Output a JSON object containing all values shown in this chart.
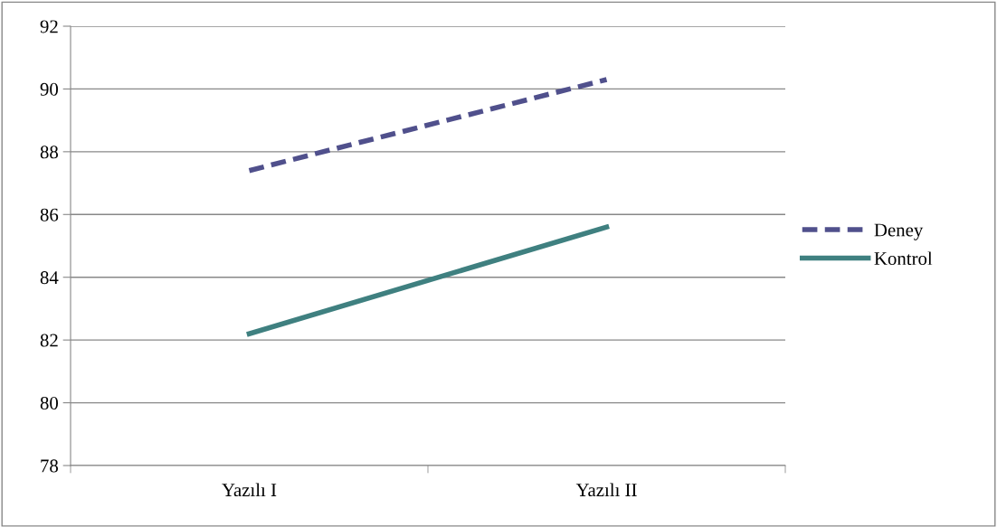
{
  "chart_data": {
    "type": "line",
    "categories": [
      "Yazılı I",
      "Yazılı II"
    ],
    "series": [
      {
        "name": "Deney",
        "color": "#50508c",
        "values": [
          87.4,
          90.3
        ],
        "line_style": "dashed"
      },
      {
        "name": "Kontrol",
        "color": "#3f8080",
        "values": [
          82.2,
          85.6
        ],
        "line_style": "solid"
      }
    ],
    "ylim": [
      78,
      92
    ],
    "yticks": [
      78,
      80,
      82,
      84,
      86,
      88,
      90,
      92
    ],
    "grid": "y",
    "legend": "right",
    "marker": "none"
  }
}
